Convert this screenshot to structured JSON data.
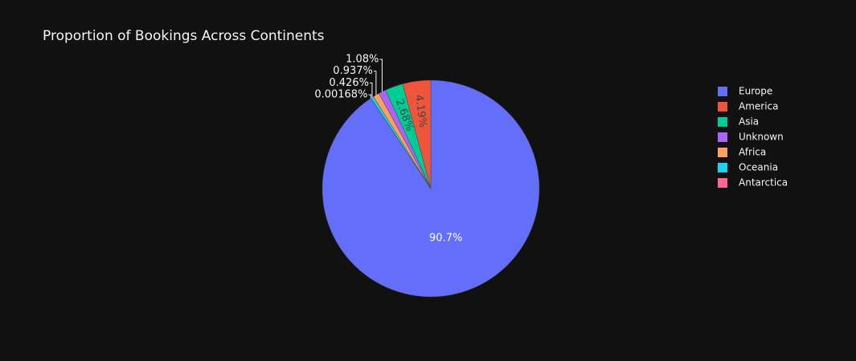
{
  "chart_data": {
    "type": "pie",
    "title": "Proportion of Bookings Across Continents",
    "categories": [
      "Europe",
      "America",
      "Asia",
      "Unknown",
      "Africa",
      "Oceania",
      "Antarctica"
    ],
    "values": [
      90.7,
      4.19,
      2.68,
      1.08,
      0.937,
      0.426,
      0.00168
    ],
    "value_labels": [
      "90.7%",
      "4.19%",
      "2.68%",
      "1.08%",
      "0.937%",
      "0.426%",
      "0.00168%"
    ],
    "colors": [
      "#636efa",
      "#ef553b",
      "#00cc96",
      "#ab63fa",
      "#ffa15a",
      "#19d3f3",
      "#ff6692"
    ],
    "legend": "right"
  }
}
